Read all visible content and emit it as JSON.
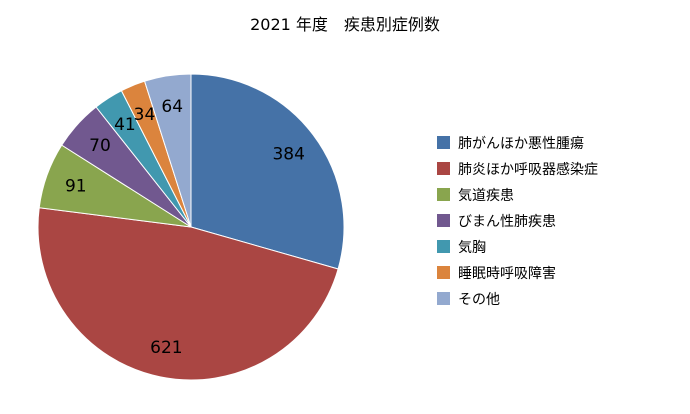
{
  "chart_data": {
    "type": "pie",
    "title": "2021 年度　疾患別症例数",
    "legend_position": "right",
    "categories": [
      "肺がんほか悪性腫瘍",
      "肺炎ほか呼吸器感染症",
      "気道疾患",
      "びまん性肺疾患",
      "気胸",
      "睡眠時呼吸障害",
      "その他"
    ],
    "values": [
      384,
      621,
      91,
      70,
      41,
      34,
      64
    ],
    "colors": [
      "#4572A7",
      "#AA4643",
      "#89A54E",
      "#71588F",
      "#4198AF",
      "#DB843D",
      "#93A9CF"
    ],
    "start_angle_deg": 0,
    "direction": "clockwise"
  }
}
